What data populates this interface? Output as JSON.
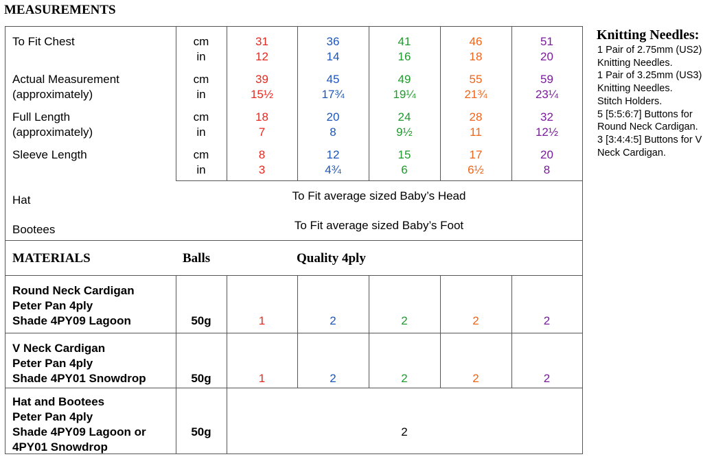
{
  "title": "MEASUREMENTS",
  "colors": {
    "size1": "#e8281e",
    "size2": "#1c55b8",
    "size3": "#1e9a2c",
    "size4": "#f06418",
    "size5": "#7a1a9c"
  },
  "measurements": [
    {
      "label": [
        "To Fit Chest"
      ],
      "units": [
        "cm",
        "in"
      ],
      "values": [
        [
          "31",
          "12"
        ],
        [
          "36",
          "14"
        ],
        [
          "41",
          "16"
        ],
        [
          "46",
          "18"
        ],
        [
          "51",
          "20"
        ]
      ]
    },
    {
      "label": [
        "Actual Measurement",
        "(approximately)"
      ],
      "units": [
        "cm",
        "in"
      ],
      "values": [
        [
          "39",
          "15½"
        ],
        [
          "45",
          "17¾"
        ],
        [
          "49",
          "19¼"
        ],
        [
          "55",
          "21¾"
        ],
        [
          "59",
          "23¼"
        ]
      ]
    },
    {
      "label": [
        "Full Length",
        "(approximately)"
      ],
      "units": [
        "cm",
        "in"
      ],
      "values": [
        [
          "18",
          "7"
        ],
        [
          "20",
          "8"
        ],
        [
          "24",
          "9½"
        ],
        [
          "28",
          "11"
        ],
        [
          "32",
          "12½"
        ]
      ]
    },
    {
      "label": [
        "Sleeve Length"
      ],
      "units": [
        "cm",
        "in"
      ],
      "values": [
        [
          "8",
          "3"
        ],
        [
          "12",
          "4¾"
        ],
        [
          "15",
          "6"
        ],
        [
          "17",
          "6½"
        ],
        [
          "20",
          "8"
        ]
      ]
    }
  ],
  "hat": {
    "label": "Hat",
    "text": "To Fit average sized Baby’s Head"
  },
  "bootees": {
    "label": "Bootees",
    "text": "To Fit average sized Baby’s Foot"
  },
  "materials_header": {
    "label": "MATERIALS",
    "balls": "Balls",
    "quality": "Quality  4ply"
  },
  "materials": [
    {
      "lines": [
        "Round Neck Cardigan",
        "Peter Pan 4ply",
        "Shade 4PY09 Lagoon"
      ],
      "weight": "50g",
      "counts": [
        "1",
        "2",
        "2",
        "2",
        "2"
      ]
    },
    {
      "lines": [
        "V Neck Cardigan",
        "Peter Pan 4ply",
        "Shade 4PY01 Snowdrop"
      ],
      "weight": "50g",
      "counts": [
        "1",
        "2",
        "2",
        "2",
        "2"
      ]
    },
    {
      "lines": [
        "Hat and Bootees",
        "Peter Pan 4ply",
        "Shade 4PY09 Lagoon or",
        "4PY01 Snowdrop"
      ],
      "weight": "50g",
      "count": "2"
    }
  ],
  "needles": {
    "title": "Knitting Needles:",
    "lines": [
      "1 Pair of 2.75mm (US2)",
      "Knitting Needles.",
      "1 Pair of 3.25mm (US3)",
      "Knitting Needles.",
      "Stitch Holders.",
      "5 [5:5:6:7] Buttons for",
      "Round Neck Cardigan.",
      "3 [3:4:4:5] Buttons for V",
      "Neck Cardigan."
    ]
  }
}
